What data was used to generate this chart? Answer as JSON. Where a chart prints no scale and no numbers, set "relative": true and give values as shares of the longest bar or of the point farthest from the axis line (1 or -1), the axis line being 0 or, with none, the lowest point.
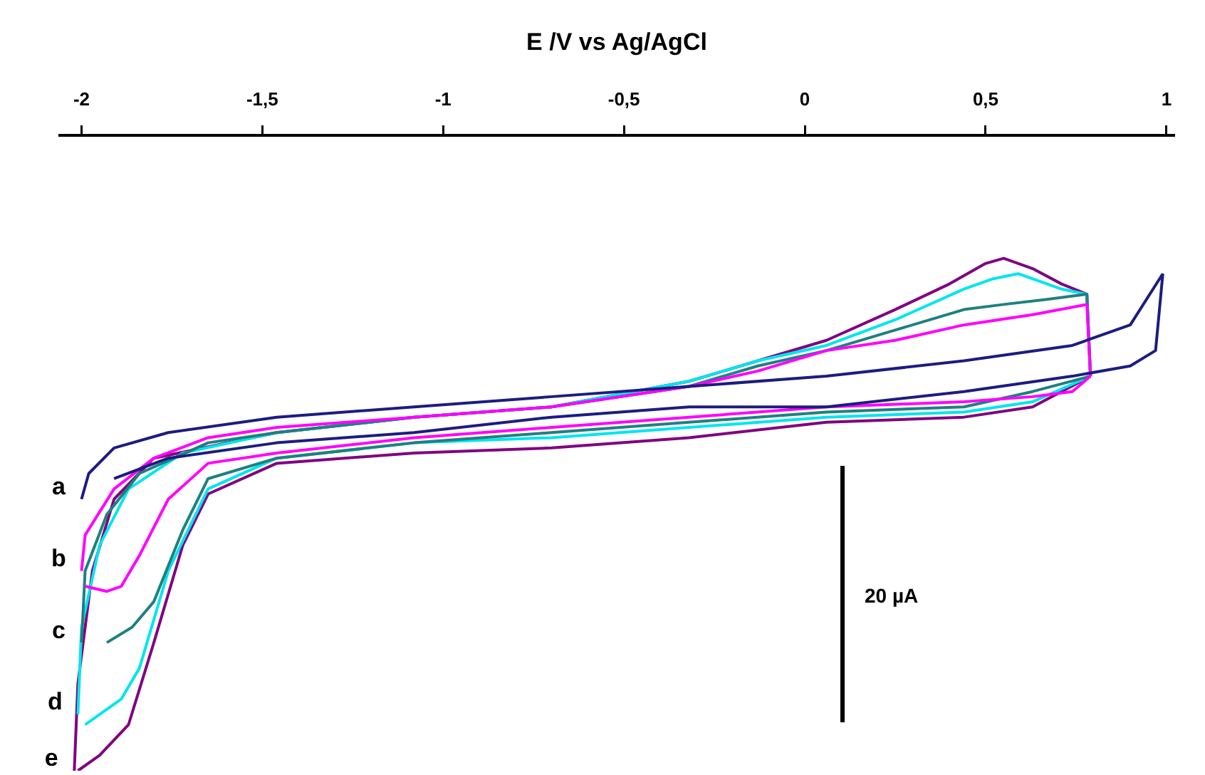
{
  "chart_data": {
    "type": "line",
    "relative": true,
    "xlabel": "E /V vs Ag/AgCl",
    "xlim": [
      -2.06,
      1.02
    ],
    "xticks": [
      {
        "value": -2,
        "label": "-2"
      },
      {
        "value": -1.5,
        "label": "-1,5"
      },
      {
        "value": -1,
        "label": "-1"
      },
      {
        "value": -0.5,
        "label": "-0,5"
      },
      {
        "value": 0,
        "label": "0"
      },
      {
        "value": 0.5,
        "label": "0,5"
      },
      {
        "value": 1,
        "label": "1"
      }
    ],
    "annotations": [
      "20 µA"
    ],
    "series": [
      {
        "name": "a",
        "color": "#1c1c80",
        "x": [
          -2.0,
          -1.98,
          -1.91,
          -1.76,
          -1.46,
          -1.08,
          -0.7,
          -0.32,
          0.06,
          0.44,
          0.74,
          0.9,
          0.99
        ],
        "values": [
          0.53,
          0.58,
          0.63,
          0.66,
          0.69,
          0.71,
          0.73,
          0.75,
          0.77,
          0.8,
          0.83,
          0.87,
          0.97
        ]
      },
      {
        "color": "#1c1c80",
        "x": [
          -1.91,
          -1.76,
          -1.46,
          -1.08,
          -0.7,
          -0.32,
          0.06,
          0.44,
          0.74,
          0.9,
          0.97,
          0.99
        ],
        "values": [
          0.57,
          0.61,
          0.64,
          0.66,
          0.69,
          0.71,
          0.71,
          0.74,
          0.77,
          0.79,
          0.82,
          0.97
        ]
      },
      {
        "name": "b",
        "color": "#ff00ff",
        "x": [
          -2.0,
          -1.99,
          -1.91,
          -1.8,
          -1.65,
          -1.46,
          -1.08,
          -0.7,
          -0.32,
          -0.13,
          0.06,
          0.25,
          0.44,
          0.63,
          0.78,
          0.79
        ],
        "values": [
          0.39,
          0.46,
          0.55,
          0.61,
          0.65,
          0.67,
          0.69,
          0.71,
          0.75,
          0.78,
          0.82,
          0.84,
          0.87,
          0.89,
          0.91,
          0.77
        ]
      },
      {
        "color": "#ff00ff",
        "x": [
          -1.99,
          -1.93,
          -1.89,
          -1.84,
          -1.76,
          -1.65,
          -1.46,
          -1.08,
          -0.7,
          -0.32,
          0.06,
          0.44,
          0.63,
          0.74,
          0.79
        ],
        "values": [
          0.36,
          0.35,
          0.36,
          0.42,
          0.53,
          0.6,
          0.62,
          0.65,
          0.67,
          0.69,
          0.71,
          0.72,
          0.73,
          0.74,
          0.77
        ]
      },
      {
        "name": "c",
        "color": "#1f8080",
        "x": [
          -2.0,
          -1.99,
          -1.93,
          -1.84,
          -1.65,
          -1.46,
          -1.08,
          -0.7,
          -0.32,
          -0.13,
          0.06,
          0.25,
          0.44,
          0.55,
          0.67,
          0.78,
          0.79
        ],
        "values": [
          0.25,
          0.39,
          0.5,
          0.58,
          0.64,
          0.66,
          0.69,
          0.71,
          0.75,
          0.79,
          0.82,
          0.86,
          0.9,
          0.91,
          0.92,
          0.93,
          0.77
        ]
      },
      {
        "color": "#1f8080",
        "x": [
          -1.93,
          -1.86,
          -1.8,
          -1.72,
          -1.65,
          -1.46,
          -1.08,
          -0.7,
          -0.32,
          0.06,
          0.44,
          0.63,
          0.79
        ],
        "values": [
          0.25,
          0.28,
          0.33,
          0.47,
          0.57,
          0.61,
          0.64,
          0.66,
          0.68,
          0.7,
          0.71,
          0.74,
          0.77
        ]
      },
      {
        "name": "d",
        "color": "#00e5ee",
        "x": [
          -2.01,
          -2.0,
          -1.95,
          -1.87,
          -1.72,
          -1.46,
          -1.08,
          -0.7,
          -0.32,
          -0.13,
          0.06,
          0.25,
          0.44,
          0.52,
          0.59,
          0.71,
          0.78,
          0.79
        ],
        "values": [
          0.11,
          0.28,
          0.44,
          0.55,
          0.62,
          0.66,
          0.69,
          0.71,
          0.76,
          0.8,
          0.83,
          0.88,
          0.94,
          0.96,
          0.97,
          0.94,
          0.93,
          0.77
        ]
      },
      {
        "color": "#00e5ee",
        "x": [
          -1.99,
          -1.89,
          -1.84,
          -1.76,
          -1.65,
          -1.46,
          -1.08,
          -0.7,
          -0.32,
          0.06,
          0.44,
          0.63,
          0.79
        ],
        "values": [
          0.09,
          0.14,
          0.2,
          0.39,
          0.55,
          0.61,
          0.64,
          0.65,
          0.67,
          0.69,
          0.7,
          0.72,
          0.77
        ]
      },
      {
        "name": "e",
        "color": "#800080",
        "x": [
          -2.02,
          -2.01,
          -1.97,
          -1.91,
          -1.8,
          -1.46,
          -1.08,
          -0.7,
          -0.32,
          -0.13,
          0.06,
          0.25,
          0.4,
          0.5,
          0.55,
          0.63,
          0.71,
          0.78,
          0.79
        ],
        "values": [
          0.0,
          0.17,
          0.39,
          0.53,
          0.61,
          0.66,
          0.69,
          0.71,
          0.76,
          0.8,
          0.84,
          0.9,
          0.95,
          0.99,
          1.0,
          0.98,
          0.95,
          0.93,
          0.77
        ]
      },
      {
        "color": "#800080",
        "x": [
          -2.01,
          -1.95,
          -1.87,
          -1.8,
          -1.72,
          -1.65,
          -1.46,
          -1.08,
          -0.7,
          -0.32,
          0.06,
          0.44,
          0.63,
          0.79
        ],
        "values": [
          0,
          0.03,
          0.09,
          0.25,
          0.44,
          0.54,
          0.6,
          0.62,
          0.63,
          0.65,
          0.68,
          0.69,
          0.71,
          0.77
        ]
      }
    ]
  }
}
